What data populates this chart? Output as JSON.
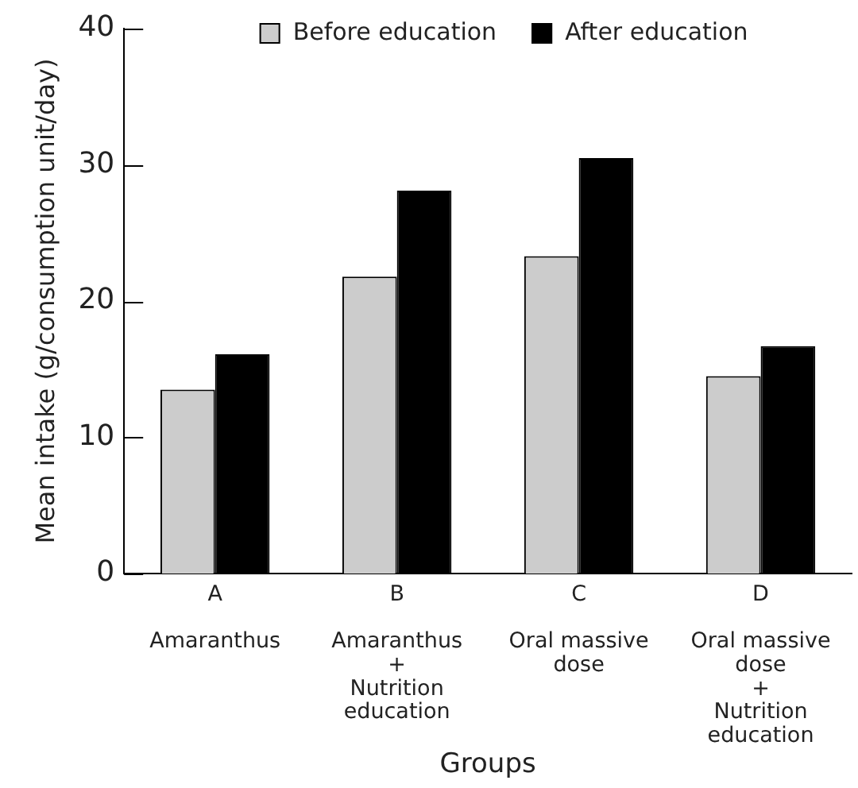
{
  "chart_data": {
    "type": "bar",
    "xlabel": "Groups",
    "ylabel": "Mean intake (g/consumption unit/day)",
    "categories": [
      "A\n\nAmaranthus",
      "B\n\nAmaranthus\n+\nNutrition\neducation",
      "C\n\nOral massive\ndose",
      "D\n\nOral massive\ndose\n+\nNutrition\neducation"
    ],
    "series": [
      {
        "name": "Before education",
        "color": "#cccccc",
        "values": [
          13.5,
          21.8,
          23.3,
          14.5
        ]
      },
      {
        "name": "After education",
        "color": "#000000",
        "values": [
          16.1,
          28.1,
          30.5,
          16.7
        ]
      }
    ],
    "ylim": [
      0,
      40
    ],
    "yticks": [
      0,
      10,
      20,
      30,
      40
    ],
    "grid": false,
    "legend": "top"
  }
}
